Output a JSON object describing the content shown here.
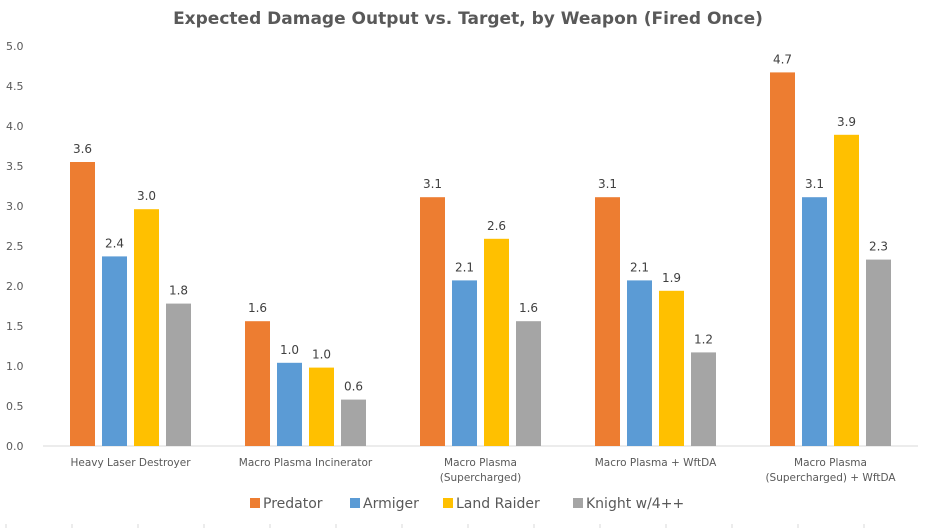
{
  "chart_data": {
    "type": "bar",
    "title": "Expected Damage Output vs. Target, by Weapon (Fired Once)",
    "xlabel": "",
    "ylabel": "",
    "ylim": [
      0,
      5
    ],
    "yticks": [
      "0.0",
      "0.5",
      "1.0",
      "1.5",
      "2.0",
      "2.5",
      "3.0",
      "3.5",
      "4.0",
      "4.5",
      "5.0"
    ],
    "grid": false,
    "legend_position": "bottom",
    "categories": [
      [
        "Heavy Laser Destroyer"
      ],
      [
        "Macro Plasma Incinerator"
      ],
      [
        "Macro Plasma",
        "(Supercharged)"
      ],
      [
        "Macro Plasma + WftDA"
      ],
      [
        "Macro Plasma",
        "(Supercharged) + WftDA"
      ]
    ],
    "series": [
      {
        "name": "Predator",
        "color": "#ED7D31",
        "values": [
          3.55,
          1.56,
          3.11,
          3.11,
          4.67
        ],
        "labels": [
          "3.6",
          "1.6",
          "3.1",
          "3.1",
          "4.7"
        ]
      },
      {
        "name": "Armiger",
        "color": "#5B9BD5",
        "values": [
          2.37,
          1.04,
          2.07,
          2.07,
          3.11
        ],
        "labels": [
          "2.4",
          "1.0",
          "2.1",
          "2.1",
          "3.1"
        ]
      },
      {
        "name": "Land Raider",
        "color": "#FFC000",
        "values": [
          2.96,
          0.98,
          2.59,
          1.94,
          3.89
        ],
        "labels": [
          "3.0",
          "1.0",
          "2.6",
          "1.9",
          "3.9"
        ]
      },
      {
        "name": "Knight w/4++",
        "color": "#A5A5A5",
        "values": [
          1.78,
          0.58,
          1.56,
          1.17,
          2.33
        ],
        "labels": [
          "1.8",
          "0.6",
          "1.6",
          "1.2",
          "2.3"
        ]
      }
    ]
  }
}
